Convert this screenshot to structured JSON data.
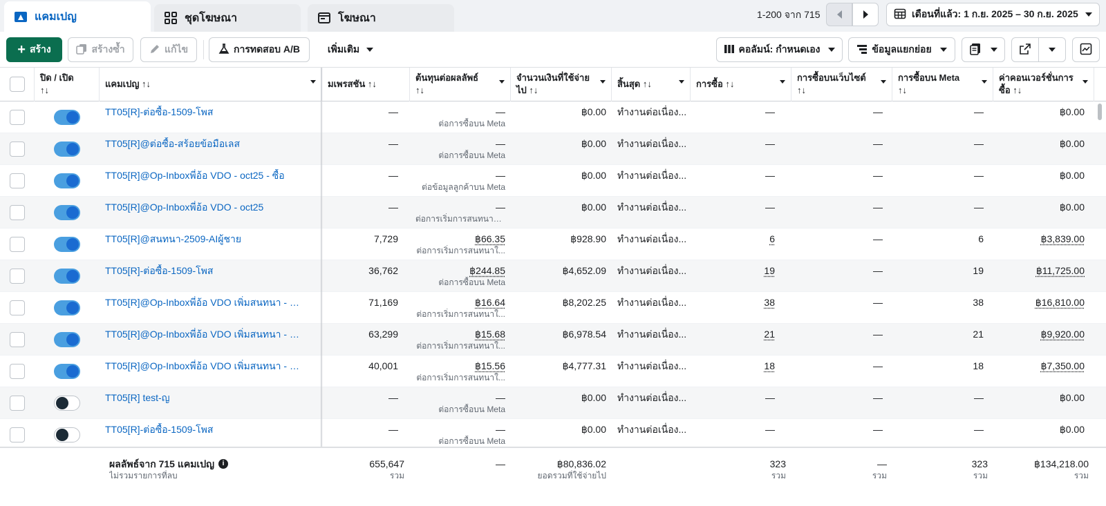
{
  "tabs": [
    {
      "label": "แคมเปญ",
      "icon": "folder-icon",
      "active": true
    },
    {
      "label": "ชุดโฆษณา",
      "icon": "grid-icon",
      "active": false
    },
    {
      "label": "โฆษณา",
      "icon": "ad-window-icon",
      "active": false
    }
  ],
  "pager": {
    "text": "1-200 จาก 715"
  },
  "date_range": {
    "label": "เดือนที่แล้ว: 1 ก.ย. 2025 – 30 ก.ย. 2025"
  },
  "toolbar": {
    "create": "สร้าง",
    "duplicate": "สร้างซ้ำ",
    "edit": "แก้ไข",
    "ab_test": "การทดสอบ A/B",
    "more": "เพิ่มเติม",
    "columns": "คอลัมน์: กำหนดเอง",
    "breakdown": "ข้อมูลแยกย่อย"
  },
  "columns": {
    "toggle": "ปิด / เปิด",
    "campaign": "แคมเปญ",
    "impressions": "มเพรสชัน",
    "cost_per_result": "ต้นทุนต่อผลลัพธ์",
    "amount_spent": "จำนวนเงินที่ใช้จ่ายไป",
    "ends": "สิ้นสุด",
    "purchases": "การซื้อ",
    "website_purchases": "การซื้อบนเว็บไซต์",
    "meta_purchases": "การซื้อบน Meta",
    "conversion_value": "ค่าคอนเวอร์ชั่นการซื้อ",
    "sort_glyph": "↑↓"
  },
  "rows": [
    {
      "on": true,
      "name": "TT05[R]-ต่อซื้อ-1509-โพส",
      "impr": "—",
      "cpr": "—",
      "cpr_sub": "ต่อการซื้อบน Meta",
      "spent": "฿0.00",
      "ends": "ทำงานต่อเนื่อง...",
      "purch": "—",
      "web": "—",
      "meta": "—",
      "value": "฿0.00",
      "ul": false
    },
    {
      "on": true,
      "name": "TT05[R]@ต่อซื้อ-สร้อยข้อมือเลส",
      "impr": "—",
      "cpr": "—",
      "cpr_sub": "ต่อการซื้อบน Meta",
      "spent": "฿0.00",
      "ends": "ทำงานต่อเนื่อง...",
      "purch": "—",
      "web": "—",
      "meta": "—",
      "value": "฿0.00",
      "ul": false
    },
    {
      "on": true,
      "name": "TT05[R]@Op-Inboxพี่อ้อ VDO - oct25 - ซื้อ",
      "impr": "—",
      "cpr": "—",
      "cpr_sub": "ต่อข้อมูลลูกค้าบน Meta",
      "spent": "฿0.00",
      "ends": "ทำงานต่อเนื่อง...",
      "purch": "—",
      "web": "—",
      "meta": "—",
      "value": "฿0.00",
      "ul": false
    },
    {
      "on": true,
      "name": "TT05[R]@Op-Inboxพี่อ้อ VDO - oct25",
      "impr": "—",
      "cpr": "—",
      "cpr_sub": "ต่อการเริ่มการสนทนาใน...",
      "spent": "฿0.00",
      "ends": "ทำงานต่อเนื่อง...",
      "purch": "—",
      "web": "—",
      "meta": "—",
      "value": "฿0.00",
      "ul": false
    },
    {
      "on": true,
      "name": "TT05[R]@สนทนา-2509-AIผู้ชาย",
      "impr": "7,729",
      "cpr": "฿66.35",
      "cpr_sub": "ต่อการเริ่มการสนทนาใ...",
      "spent": "฿928.90",
      "ends": "ทำงานต่อเนื่อง...",
      "purch": "6",
      "web": "—",
      "meta": "6",
      "value": "฿3,839.00",
      "ul": true
    },
    {
      "on": true,
      "name": "TT05[R]-ต่อซื้อ-1509-โพส",
      "impr": "36,762",
      "cpr": "฿244.85",
      "cpr_sub": "ต่อการซื้อบน Meta",
      "spent": "฿4,652.09",
      "ends": "ทำงานต่อเนื่อง...",
      "purch": "19",
      "web": "—",
      "meta": "19",
      "value": "฿11,725.00",
      "ul": true
    },
    {
      "on": true,
      "name": "TT05[R]@Op-Inboxพี่อ้อ VDO เพิ่มสนทนา - สำเ...",
      "impr": "71,169",
      "cpr": "฿16.64",
      "cpr_sub": "ต่อการเริ่มการสนทนาใ...",
      "spent": "฿8,202.25",
      "ends": "ทำงานต่อเนื่อง...",
      "purch": "38",
      "web": "—",
      "meta": "38",
      "value": "฿16,810.00",
      "ul": true
    },
    {
      "on": true,
      "name": "TT05[R]@Op-Inboxพี่อ้อ VDO เพิ่มสนทนา - สำเ...",
      "impr": "63,299",
      "cpr": "฿15.68",
      "cpr_sub": "ต่อการเริ่มการสนทนาใ...",
      "spent": "฿6,978.54",
      "ends": "ทำงานต่อเนื่อง...",
      "purch": "21",
      "web": "—",
      "meta": "21",
      "value": "฿9,920.00",
      "ul": true
    },
    {
      "on": true,
      "name": "TT05[R]@Op-Inboxพี่อ้อ VDO เพิ่มสนทนา - สำเ...",
      "impr": "40,001",
      "cpr": "฿15.56",
      "cpr_sub": "ต่อการเริ่มการสนทนาใ...",
      "spent": "฿4,777.31",
      "ends": "ทำงานต่อเนื่อง...",
      "purch": "18",
      "web": "—",
      "meta": "18",
      "value": "฿7,350.00",
      "ul": true
    },
    {
      "on": false,
      "name": "TT05[R] test-ญ",
      "impr": "—",
      "cpr": "—",
      "cpr_sub": "ต่อการซื้อบน Meta",
      "spent": "฿0.00",
      "ends": "ทำงานต่อเนื่อง...",
      "purch": "—",
      "web": "—",
      "meta": "—",
      "value": "฿0.00",
      "ul": false
    },
    {
      "on": false,
      "name": "TT05[R]-ต่อซื้อ-1509-โพส",
      "impr": "—",
      "cpr": "—",
      "cpr_sub": "ต่อการซื้อบน Meta",
      "spent": "฿0.00",
      "ends": "ทำงานต่อเนื่อง...",
      "purch": "—",
      "web": "—",
      "meta": "—",
      "value": "฿0.00",
      "ul": false
    }
  ],
  "footer": {
    "title": "ผลลัพธ์จาก 715 แคมเปญ",
    "subtitle": "ไม่รวมรายการที่ลบ",
    "impr": "655,647",
    "impr_sub": "รวม",
    "cpr": "—",
    "spent": "฿80,836.02",
    "spent_sub": "ยอดรวมที่ใช้จ่ายไป",
    "purch": "323",
    "purch_sub": "รวม",
    "web": "—",
    "web_sub": "รวม",
    "meta": "323",
    "meta_sub": "รวม",
    "value": "฿134,218.00",
    "value_sub": "รวม"
  },
  "colors": {
    "accent": "#0a66c2",
    "create_button": "#0b6e4f",
    "toggle_on": "#1a6bd1"
  }
}
